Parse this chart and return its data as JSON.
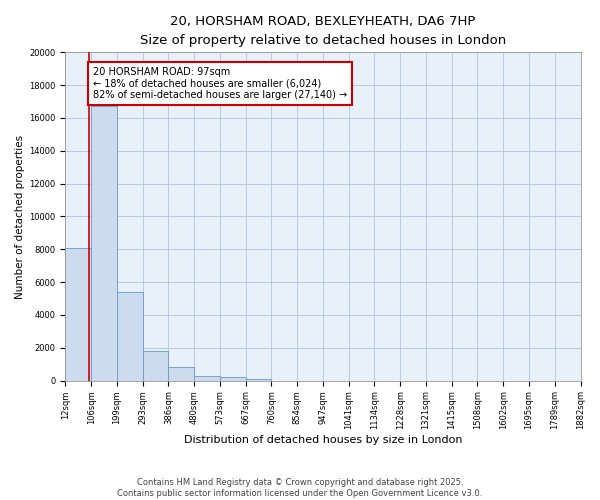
{
  "title_line1": "20, HORSHAM ROAD, BEXLEYHEATH, DA6 7HP",
  "title_line2": "Size of property relative to detached houses in London",
  "xlabel": "Distribution of detached houses by size in London",
  "ylabel": "Number of detached properties",
  "annotation_text": "20 HORSHAM ROAD: 97sqm\n← 18% of detached houses are smaller (6,024)\n82% of semi-detached houses are larger (27,140) →",
  "property_size_sqm": 97,
  "footer": "Contains HM Land Registry data © Crown copyright and database right 2025.\nContains public sector information licensed under the Open Government Licence v3.0.",
  "bin_edges": [
    12,
    106,
    199,
    293,
    386,
    480,
    573,
    667,
    760,
    854,
    947,
    1041,
    1134,
    1228,
    1321,
    1415,
    1508,
    1602,
    1695,
    1789,
    1882
  ],
  "bin_counts": [
    8100,
    16700,
    5400,
    1800,
    800,
    300,
    200,
    100,
    0,
    0,
    0,
    0,
    0,
    0,
    0,
    0,
    0,
    0,
    0,
    0
  ],
  "bar_color": "#ccdcee",
  "bar_edge_color": "#6699cc",
  "vline_color": "#cc0000",
  "vline_x": 97,
  "annotation_box_color": "#cc0000",
  "background_color": "#ffffff",
  "plot_bg_color": "#e8f0fa",
  "grid_color": "#b0c4de",
  "ylim": [
    0,
    20000
  ],
  "yticks": [
    0,
    2000,
    4000,
    6000,
    8000,
    10000,
    12000,
    14000,
    16000,
    18000,
    20000
  ],
  "title_fontsize": 9.5,
  "subtitle_fontsize": 8.5,
  "ylabel_fontsize": 7.5,
  "xlabel_fontsize": 8,
  "tick_fontsize": 6,
  "footer_fontsize": 6,
  "annotation_fontsize": 7
}
